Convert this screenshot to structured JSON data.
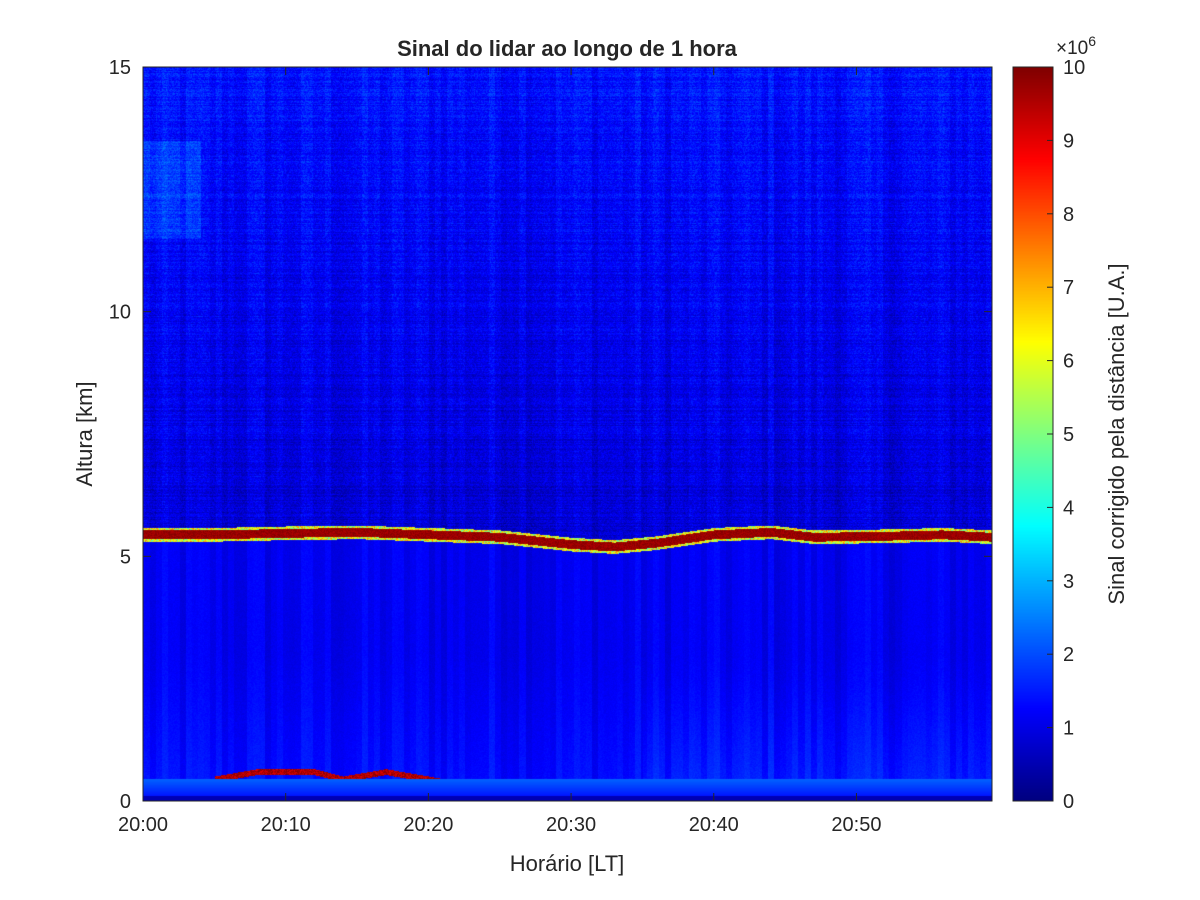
{
  "chart_data": {
    "type": "heatmap",
    "title": "Sinal do lidar ao longo de 1 hora",
    "xlabel": "Horário [LT]",
    "ylabel": "Altura [km]",
    "colorbar_label": "Sinal corrigido pela distância [U.A.]",
    "colorbar_exponent_base": "×10",
    "colorbar_exponent_power": "6",
    "colormap": "jet",
    "x_range_minutes": [
      0,
      59.5
    ],
    "x_ticks": [
      {
        "value": 0,
        "label": "20:00"
      },
      {
        "value": 10,
        "label": "20:10"
      },
      {
        "value": 20,
        "label": "20:20"
      },
      {
        "value": 30,
        "label": "20:30"
      },
      {
        "value": 40,
        "label": "20:40"
      },
      {
        "value": 50,
        "label": "20:50"
      }
    ],
    "ylim": [
      0,
      15
    ],
    "y_ticks": [
      {
        "value": 0,
        "label": "0"
      },
      {
        "value": 5,
        "label": "5"
      },
      {
        "value": 10,
        "label": "10"
      },
      {
        "value": 15,
        "label": "15"
      }
    ],
    "clim": [
      0,
      10
    ],
    "c_ticks": [
      {
        "value": 0,
        "label": "0"
      },
      {
        "value": 1,
        "label": "1"
      },
      {
        "value": 2,
        "label": "2"
      },
      {
        "value": 3,
        "label": "3"
      },
      {
        "value": 4,
        "label": "4"
      },
      {
        "value": 5,
        "label": "5"
      },
      {
        "value": 6,
        "label": "6"
      },
      {
        "value": 7,
        "label": "7"
      },
      {
        "value": 8,
        "label": "8"
      },
      {
        "value": 9,
        "label": "9"
      },
      {
        "value": 10,
        "label": "10"
      }
    ],
    "cloud_layer_altitude_km": [
      {
        "time": 0,
        "alt": 5.45
      },
      {
        "time": 5,
        "alt": 5.45
      },
      {
        "time": 10,
        "alt": 5.48
      },
      {
        "time": 15,
        "alt": 5.5
      },
      {
        "time": 20,
        "alt": 5.45
      },
      {
        "time": 25,
        "alt": 5.4
      },
      {
        "time": 30,
        "alt": 5.25
      },
      {
        "time": 33,
        "alt": 5.2
      },
      {
        "time": 36,
        "alt": 5.28
      },
      {
        "time": 40,
        "alt": 5.45
      },
      {
        "time": 44,
        "alt": 5.5
      },
      {
        "time": 47,
        "alt": 5.4
      },
      {
        "time": 52,
        "alt": 5.42
      },
      {
        "time": 56,
        "alt": 5.45
      },
      {
        "time": 59.5,
        "alt": 5.4
      }
    ],
    "low_layer_altitude_km": [
      {
        "time": 5,
        "alt": 0.45
      },
      {
        "time": 8,
        "alt": 0.6
      },
      {
        "time": 12,
        "alt": 0.6
      },
      {
        "time": 14,
        "alt": 0.45
      },
      {
        "time": 17,
        "alt": 0.6
      },
      {
        "time": 22,
        "alt": 0.35
      },
      {
        "time": 25,
        "alt": 0.3
      },
      {
        "time": 28,
        "alt": 0.4
      }
    ]
  }
}
